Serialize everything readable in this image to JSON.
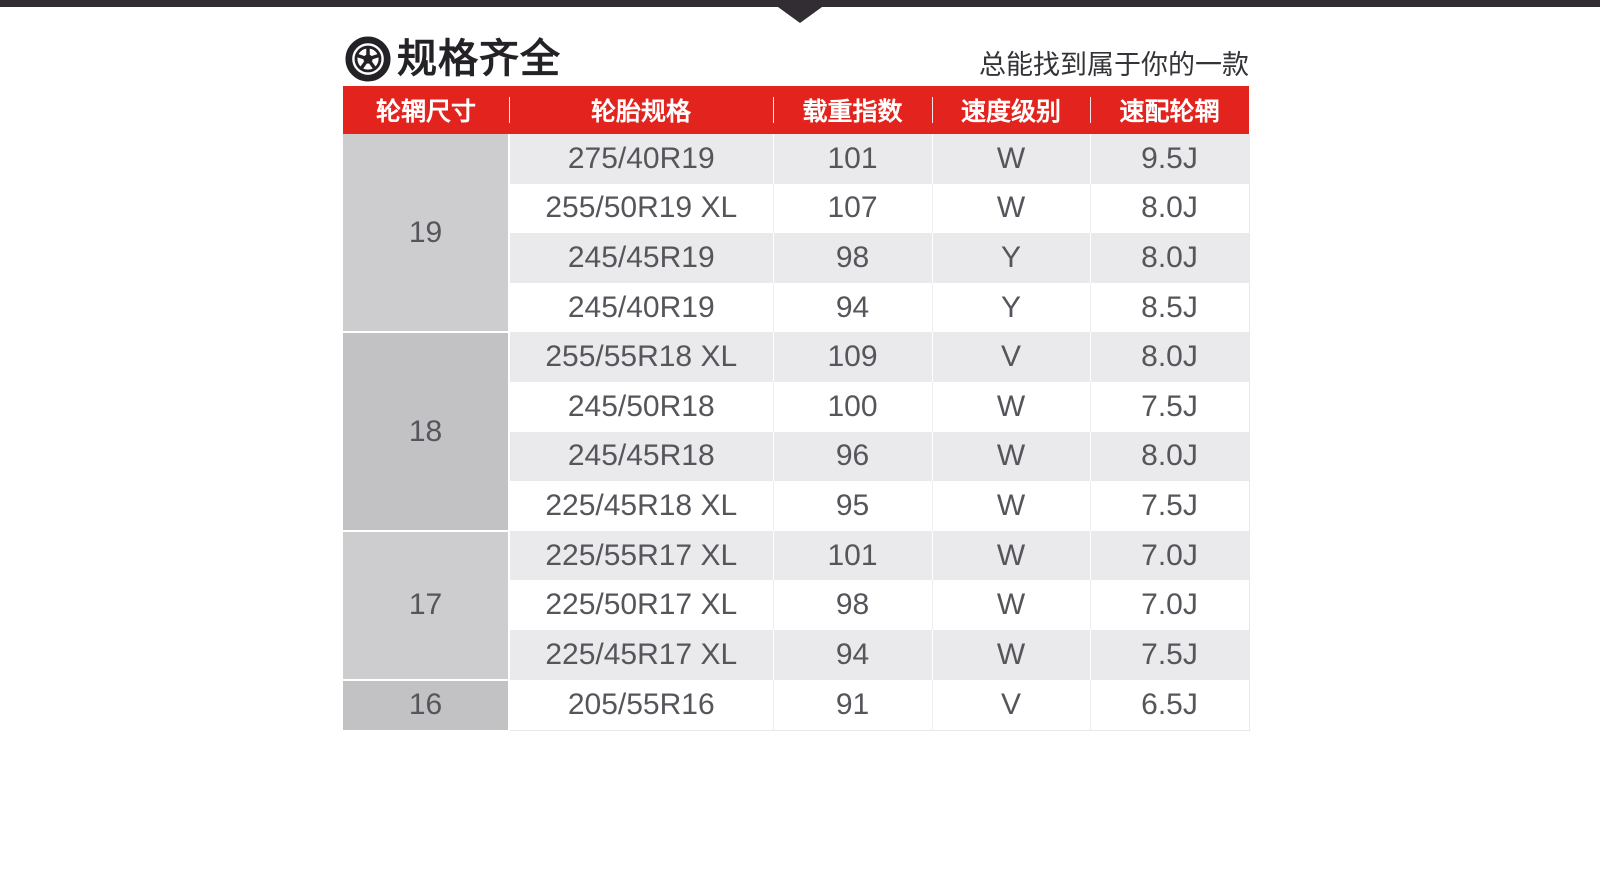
{
  "colors": {
    "accent": "#e3241e",
    "top_bar": "#312d33",
    "row_alt": "#eae9eb",
    "rim_group_light": "#cdccce",
    "rim_group_dark": "#c2c1c4"
  },
  "header": {
    "icon": "wheel-icon",
    "title": "规格齐全",
    "subtitle": "总能找到属于你的一款"
  },
  "table": {
    "columns": [
      {
        "key": "rim_size",
        "label": "轮辋尺寸"
      },
      {
        "key": "tire_spec",
        "label": "轮胎规格"
      },
      {
        "key": "load_index",
        "label": "载重指数"
      },
      {
        "key": "speed_rating",
        "label": "速度级别"
      },
      {
        "key": "matching_rim",
        "label": "速配轮辋"
      }
    ],
    "groups": [
      {
        "rim_size": "19",
        "rows": [
          {
            "spec": "275/40R19",
            "load": "101",
            "speed": "W",
            "rim": "9.5J"
          },
          {
            "spec": "255/50R19 XL",
            "load": "107",
            "speed": "W",
            "rim": "8.0J"
          },
          {
            "spec": "245/45R19",
            "load": "98",
            "speed": "Y",
            "rim": "8.0J"
          },
          {
            "spec": "245/40R19",
            "load": "94",
            "speed": "Y",
            "rim": "8.5J"
          }
        ]
      },
      {
        "rim_size": "18",
        "rows": [
          {
            "spec": "255/55R18 XL",
            "load": "109",
            "speed": "V",
            "rim": "8.0J"
          },
          {
            "spec": "245/50R18",
            "load": "100",
            "speed": "W",
            "rim": "7.5J"
          },
          {
            "spec": "245/45R18",
            "load": "96",
            "speed": "W",
            "rim": "8.0J"
          },
          {
            "spec": "225/45R18 XL",
            "load": "95",
            "speed": "W",
            "rim": "7.5J"
          }
        ]
      },
      {
        "rim_size": "17",
        "rows": [
          {
            "spec": "225/55R17 XL",
            "load": "101",
            "speed": "W",
            "rim": "7.0J"
          },
          {
            "spec": "225/50R17 XL",
            "load": "98",
            "speed": "W",
            "rim": "7.0J"
          },
          {
            "spec": "225/45R17 XL",
            "load": "94",
            "speed": "W",
            "rim": "7.5J"
          }
        ]
      },
      {
        "rim_size": "16",
        "rows": [
          {
            "spec": "205/55R16",
            "load": "91",
            "speed": "V",
            "rim": "6.5J"
          }
        ]
      }
    ]
  }
}
